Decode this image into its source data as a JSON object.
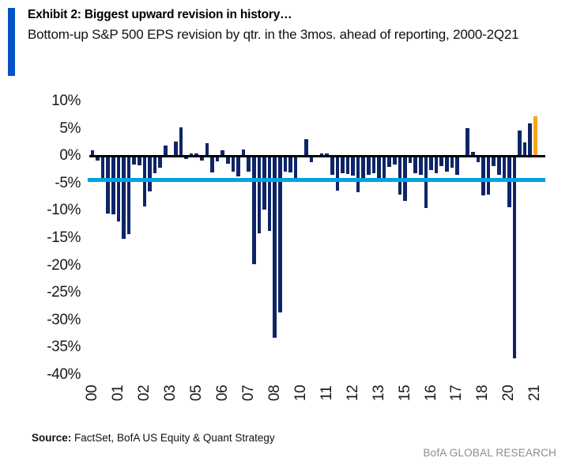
{
  "header": {
    "exhibit_title": "Exhibit 2: Biggest upward revision in history…",
    "subtitle": "Bottom-up S&P 500 EPS revision by qtr. in the 3mos. ahead of reporting, 2000-2Q21"
  },
  "footer": {
    "source_label": "Source:",
    "source_text": "FactSet, BofA US Equity & Quant Strategy",
    "brand": "BofA GLOBAL RESEARCH"
  },
  "colors": {
    "bar": "#0E2567",
    "highlight_bar": "#F9A51B",
    "average_line": "#00A3E0",
    "zero_line": "#000000",
    "title_accent": "#0551C8",
    "brand_text": "#8C8C8C"
  },
  "chart_data": {
    "type": "bar",
    "title": "Exhibit 2: Biggest upward revision in history…",
    "subtitle": "Bottom-up S&P 500 EPS revision by qtr. in the 3mos. ahead of reporting, 2000-2Q21",
    "unit": "%",
    "ylim": [
      -40,
      10
    ],
    "y_tick_step": 5,
    "y_ticks": [
      "10%",
      "5%",
      "0%",
      "-5%",
      "-10%",
      "-15%",
      "-20%",
      "-25%",
      "-30%",
      "-35%",
      "-40%"
    ],
    "x_tick_labels": [
      "00",
      "01",
      "02",
      "03",
      "05",
      "06",
      "07",
      "08",
      "10",
      "11",
      "12",
      "13",
      "15",
      "16",
      "17",
      "18",
      "20",
      "21"
    ],
    "x_tick_every_quarters": 5,
    "grid": false,
    "legend": null,
    "average_line_value": -4.4,
    "highlight_last_bar": true,
    "quarters": [
      "00Q1",
      "00Q2",
      "00Q3",
      "00Q4",
      "01Q1",
      "01Q2",
      "01Q3",
      "01Q4",
      "02Q1",
      "02Q2",
      "02Q3",
      "02Q4",
      "03Q1",
      "03Q2",
      "03Q3",
      "03Q4",
      "04Q1",
      "04Q2",
      "04Q3",
      "04Q4",
      "05Q1",
      "05Q2",
      "05Q3",
      "05Q4",
      "06Q1",
      "06Q2",
      "06Q3",
      "06Q4",
      "07Q1",
      "07Q2",
      "07Q3",
      "07Q4",
      "08Q1",
      "08Q2",
      "08Q3",
      "08Q4",
      "09Q1",
      "09Q2",
      "09Q3",
      "09Q4",
      "10Q1",
      "10Q2",
      "10Q3",
      "10Q4",
      "11Q1",
      "11Q2",
      "11Q3",
      "11Q4",
      "12Q1",
      "12Q2",
      "12Q3",
      "12Q4",
      "13Q1",
      "13Q2",
      "13Q3",
      "13Q4",
      "14Q1",
      "14Q2",
      "14Q3",
      "14Q4",
      "15Q1",
      "15Q2",
      "15Q3",
      "15Q4",
      "16Q1",
      "16Q2",
      "16Q3",
      "16Q4",
      "17Q1",
      "17Q2",
      "17Q3",
      "17Q4",
      "18Q1",
      "18Q2",
      "18Q3",
      "18Q4",
      "19Q1",
      "19Q2",
      "19Q3",
      "19Q4",
      "20Q1",
      "20Q2",
      "20Q3",
      "20Q4",
      "21Q1",
      "21Q2"
    ],
    "values": [
      1.1,
      -0.9,
      -4.5,
      -10.5,
      -10.7,
      -11.9,
      -15.2,
      -14.3,
      -1.6,
      -1.7,
      -9.2,
      -6.5,
      -3.1,
      -2.2,
      1.9,
      0,
      2.7,
      5.2,
      -0.6,
      0.5,
      0.5,
      -0.8,
      2.3,
      -3.0,
      -1.0,
      1.1,
      -1.4,
      -2.8,
      -3.8,
      1.2,
      -2.9,
      -19.7,
      -14.2,
      -9.8,
      -13.7,
      -33.2,
      -28.6,
      -2.8,
      -3.0,
      -4.6,
      0,
      3.0,
      -1.2,
      0,
      0.5,
      0.4,
      -3.4,
      -6.4,
      -3.1,
      -3.3,
      -3.6,
      -6.6,
      -4.0,
      -3.5,
      -3.1,
      -4.3,
      -4.6,
      -2.0,
      -1.5,
      -7.0,
      -8.2,
      -1.3,
      -3.2,
      -3.5,
      -9.5,
      -2.6,
      -3.2,
      -1.8,
      -2.8,
      -2.2,
      -3.5,
      0,
      5.1,
      0.8,
      -1.1,
      -7.2,
      -7.0,
      -1.9,
      -3.4,
      -4.7,
      -9.3,
      -36.9,
      4.7,
      2.5,
      5.9,
      7.3
    ]
  }
}
